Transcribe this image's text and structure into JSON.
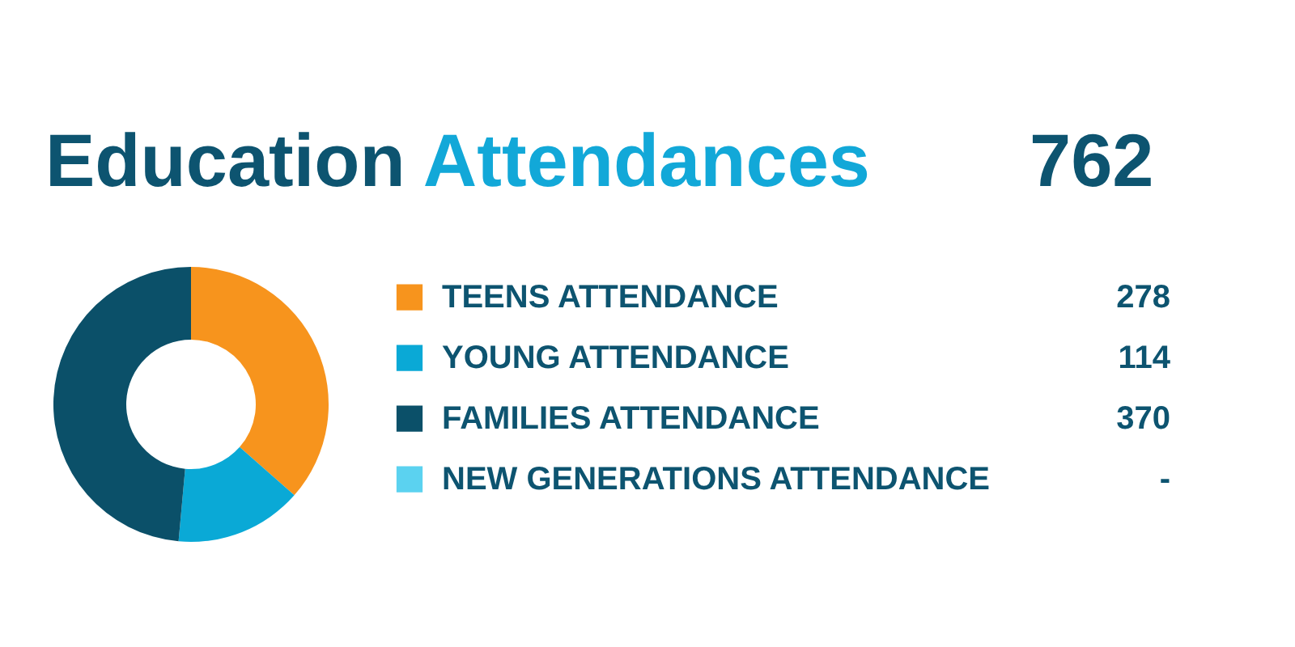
{
  "chart_data": {
    "type": "donut",
    "title": "Education Attendances",
    "annotations": [
      "762"
    ],
    "categories": [
      "TEENS ATTENDANCE",
      "YOUNG ATTENDANCE",
      "FAMILIES ATTENDANCE",
      "NEW GENERATIONS ATTENDANCE"
    ],
    "values": [
      278,
      114,
      370,
      null
    ],
    "colors": [
      "#f7941d",
      "#0aa9d6",
      "#0b5069",
      "#5bd2f0"
    ],
    "value_labels": [
      "278",
      "114",
      "370",
      "-"
    ],
    "legend": "right"
  }
}
